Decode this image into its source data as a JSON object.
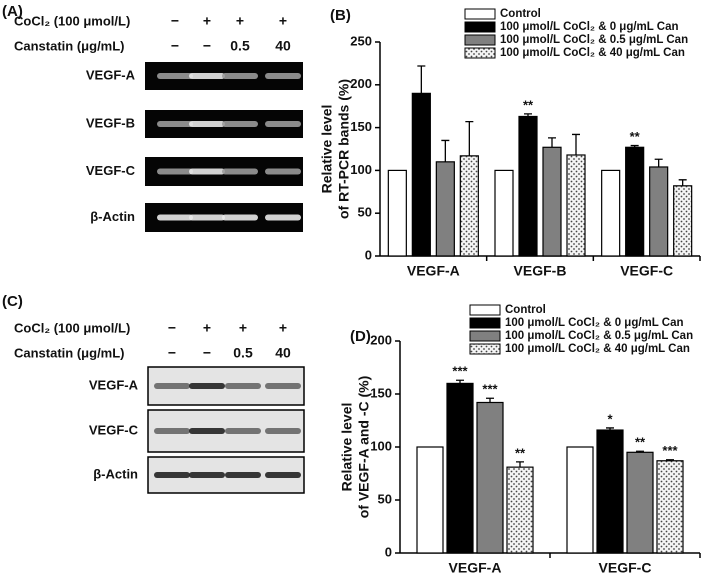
{
  "panels": [
    {
      "label": "(A)",
      "conditions": [
        {
          "name": "CoCl₂ (100 μmol/L)",
          "values": [
            "−",
            "+",
            "+",
            "+"
          ]
        },
        {
          "name": "Canstatin (μg/mL)",
          "values": [
            "−",
            "−",
            "0.5",
            "40"
          ]
        }
      ],
      "bands": [
        "VEGF-A",
        "VEGF-B",
        "VEGF-C",
        "β-Actin"
      ]
    },
    {
      "label": "(C)",
      "conditions": [
        {
          "name": "CoCl₂ (100 μmol/L)",
          "values": [
            "−",
            "+",
            "+",
            "+"
          ]
        },
        {
          "name": "Canstatin (μg/mL)",
          "values": [
            "−",
            "−",
            "0.5",
            "40"
          ]
        }
      ],
      "bands": [
        "VEGF-A",
        "VEGF-C",
        "β-Actin"
      ]
    }
  ],
  "chart_data": [
    {
      "type": "bar",
      "panel_label": "(B)",
      "y_label": [
        "Relative level",
        "of RT-PCR bands (%)"
      ],
      "categories": [
        "VEGF-A",
        "VEGF-B",
        "VEGF-C"
      ],
      "ylim": [
        0,
        250
      ],
      "yticks": [
        0,
        50,
        100,
        150,
        200,
        250
      ],
      "series": [
        {
          "name": "Control",
          "color": "#ffffff",
          "values": [
            100,
            100,
            100
          ]
        },
        {
          "name": "100 μmol/L  CoCl₂ & 0 μg/mL Can",
          "color": "#000000",
          "values": [
            190,
            163,
            127
          ],
          "errors": [
            32,
            3,
            2
          ],
          "annotations": [
            null,
            "**",
            "**"
          ]
        },
        {
          "name": "100 μmol/L CoCl₂ & 0.5 μg/mL Can",
          "color": "#808080",
          "values": [
            110,
            127,
            104
          ],
          "errors": [
            25,
            11,
            9
          ]
        },
        {
          "name": "100 μmol/L CoCl₂ & 40 μg/mL Can",
          "color": "#e8e8e8",
          "pattern": "dots",
          "values": [
            117,
            118,
            82
          ],
          "errors": [
            40,
            24,
            7
          ]
        }
      ]
    },
    {
      "type": "bar",
      "panel_label": "(D)",
      "y_label": [
        "Relative level",
        "of VEGF-A and -C (%)"
      ],
      "categories": [
        "VEGF-A",
        "VEGF-C"
      ],
      "ylim": [
        0,
        200
      ],
      "yticks": [
        0,
        50,
        100,
        150,
        200
      ],
      "series": [
        {
          "name": "Control",
          "color": "#ffffff",
          "values": [
            100,
            100
          ]
        },
        {
          "name": "100 μmol/L CoCl₂ & 0 μg/mL Can",
          "color": "#000000",
          "values": [
            160,
            116
          ],
          "errors": [
            3,
            2
          ],
          "annotations": [
            "***",
            "*"
          ]
        },
        {
          "name": "100 μmol/L CoCl₂ & 0.5 μg/mL Can",
          "color": "#808080",
          "values": [
            142,
            95
          ],
          "errors": [
            4,
            1
          ],
          "annotations": [
            "***",
            "**"
          ]
        },
        {
          "name": "100 μmol/L CoCl₂ & 40 μg/mL Can",
          "color": "#e8e8e8",
          "pattern": "dots",
          "values": [
            81,
            87
          ],
          "errors": [
            5,
            1
          ],
          "annotations": [
            "**",
            "***"
          ]
        }
      ]
    }
  ]
}
